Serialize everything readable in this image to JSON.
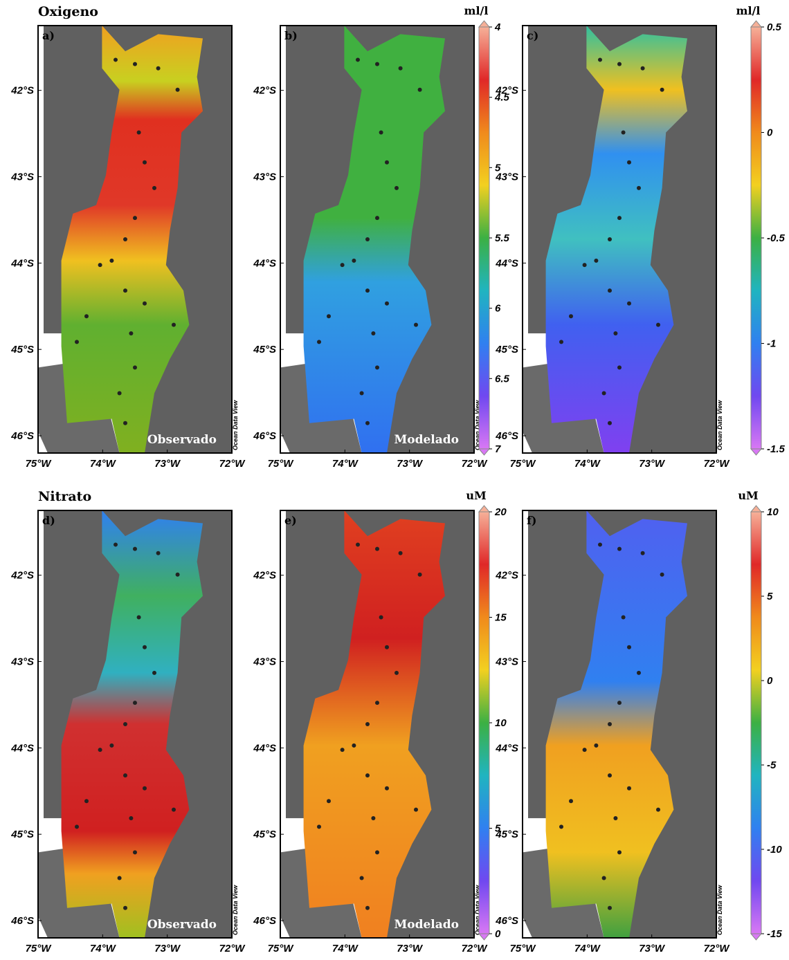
{
  "sections": [
    {
      "title": "Oxigeno",
      "unit": "ml/l",
      "panels": [
        {
          "label": "a)",
          "caption": "Observado"
        },
        {
          "label": "b)",
          "caption": "Modelado"
        },
        {
          "label": "c)"
        }
      ],
      "colorbars": [
        {
          "lim": [
            4,
            7
          ],
          "ticks": [
            4,
            4.5,
            5,
            5.5,
            6,
            6.5,
            7
          ]
        },
        {
          "lim": [
            0.5,
            -1.5
          ],
          "ticks": [
            0.5,
            0,
            -0.5,
            -1,
            -1.5
          ]
        }
      ]
    },
    {
      "title": "Nitrato",
      "unit": "uM",
      "panels": [
        {
          "label": "d)",
          "caption": "Observado"
        },
        {
          "label": "e)",
          "caption": "Modelado"
        },
        {
          "label": "f)"
        }
      ],
      "colorbars": [
        {
          "lim": [
            20,
            0
          ],
          "ticks": [
            20,
            15,
            10,
            5,
            0
          ]
        },
        {
          "lim": [
            10,
            -15
          ],
          "ticks": [
            10,
            5,
            0,
            -5,
            -10,
            -15
          ]
        }
      ]
    }
  ],
  "map": {
    "latlim": [
      -41.25,
      -46.2
    ],
    "lonlim": [
      -75,
      -72
    ],
    "latticks": [
      {
        "value": -42,
        "label": "42°S"
      },
      {
        "value": -43,
        "label": "43°S"
      },
      {
        "value": -44,
        "label": "44°S"
      },
      {
        "value": -45,
        "label": "45°S"
      },
      {
        "value": -46,
        "label": "46°S"
      }
    ],
    "lonticks": [
      {
        "value": -75,
        "label": "75°W"
      },
      {
        "value": -74,
        "label": "74°W"
      },
      {
        "value": -73,
        "label": "73°W"
      },
      {
        "value": -72,
        "label": "72°W"
      }
    ],
    "credit": "Ocean Data View"
  },
  "colormap": [
    "#f6b098",
    "#e02828",
    "#f08a1c",
    "#f2d020",
    "#3cb043",
    "#20b4c0",
    "#3080f0",
    "#7048f0",
    "#d878f4"
  ]
}
